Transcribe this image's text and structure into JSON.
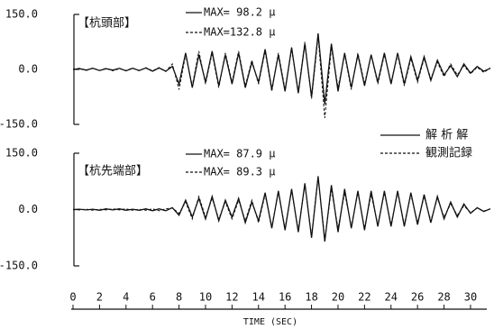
{
  "chart_data": [
    {
      "type": "line",
      "label": "【杭頭部】",
      "annotations": [
        "MAX= 98.2 μ",
        "MAX=132.8 μ"
      ],
      "xlim": [
        0,
        31.5
      ],
      "ylim": [
        -150,
        150
      ],
      "yticks": [
        {
          "value": 150,
          "label": "150.0"
        },
        {
          "value": 0,
          "label": "0.0"
        },
        {
          "value": -150,
          "label": "-150.0"
        }
      ],
      "x": [
        0,
        0.5,
        1,
        1.5,
        2,
        2.5,
        3,
        3.5,
        4,
        4.5,
        5,
        5.5,
        6,
        6.5,
        7,
        7.5,
        8,
        8.5,
        9,
        9.5,
        10,
        10.5,
        11,
        11.5,
        12,
        12.5,
        13,
        13.5,
        14,
        14.5,
        15,
        15.5,
        16,
        16.5,
        17,
        17.5,
        18,
        18.5,
        19,
        19.5,
        20,
        20.5,
        21,
        21.5,
        22,
        22.5,
        23,
        23.5,
        24,
        24.5,
        25,
        25.5,
        26,
        26.5,
        27,
        27.5,
        28,
        28.5,
        29,
        29.5,
        30,
        30.5,
        31,
        31.5
      ],
      "series": [
        {
          "name": "解 析 解",
          "color": "#111111",
          "dashed": false,
          "values": [
            0,
            2,
            -2,
            3,
            -3,
            2,
            -2,
            3,
            -4,
            3,
            -3,
            4,
            -5,
            4,
            -5,
            8,
            -40,
            45,
            -50,
            40,
            -35,
            50,
            -45,
            40,
            -40,
            45,
            -50,
            20,
            -35,
            55,
            -55,
            40,
            -60,
            60,
            -65,
            70,
            -75,
            98.2,
            -95,
            70,
            -60,
            45,
            -50,
            40,
            -45,
            40,
            -35,
            45,
            -40,
            45,
            -40,
            35,
            -30,
            35,
            -30,
            25,
            -15,
            10,
            -20,
            15,
            -10,
            8,
            -5,
            3
          ]
        },
        {
          "name": "観測記録",
          "color": "#111111",
          "dashed": true,
          "values": [
            0,
            3,
            -3,
            4,
            -3,
            3,
            -4,
            2,
            -3,
            4,
            -4,
            5,
            -4,
            5,
            -6,
            15,
            -55,
            40,
            -45,
            50,
            -40,
            45,
            -50,
            45,
            -35,
            50,
            -45,
            25,
            -40,
            50,
            -60,
            45,
            -55,
            55,
            -60,
            75,
            -80,
            90,
            -132.8,
            60,
            -50,
            40,
            -55,
            45,
            -40,
            40,
            -40,
            40,
            -35,
            40,
            -45,
            30,
            -35,
            30,
            -25,
            20,
            -20,
            15,
            -15,
            10,
            -12,
            6,
            -8,
            4
          ]
        }
      ]
    },
    {
      "type": "line",
      "label": "【杭先端部】",
      "annotations": [
        "MAX= 87.9 μ",
        "MAX= 89.3 μ"
      ],
      "xlabel": "TIME (SEC)",
      "xlim": [
        0,
        31.5
      ],
      "ylim": [
        -150,
        150
      ],
      "xticks": [
        0,
        2,
        4,
        6,
        8,
        10,
        12,
        14,
        16,
        18,
        20,
        22,
        24,
        26,
        28,
        30
      ],
      "yticks": [
        {
          "value": 150,
          "label": "150.0"
        },
        {
          "value": 0,
          "label": "0.0"
        },
        {
          "value": -150,
          "label": "-150.0"
        }
      ],
      "x": [
        0,
        0.5,
        1,
        1.5,
        2,
        2.5,
        3,
        3.5,
        4,
        4.5,
        5,
        5.5,
        6,
        6.5,
        7,
        7.5,
        8,
        8.5,
        9,
        9.5,
        10,
        10.5,
        11,
        11.5,
        12,
        12.5,
        13,
        13.5,
        14,
        14.5,
        15,
        15.5,
        16,
        16.5,
        17,
        17.5,
        18,
        18.5,
        19,
        19.5,
        20,
        20.5,
        21,
        21.5,
        22,
        22.5,
        23,
        23.5,
        24,
        24.5,
        25,
        25.5,
        26,
        26.5,
        27,
        27.5,
        28,
        28.5,
        29,
        29.5,
        30,
        30.5,
        31,
        31.5
      ],
      "series": [
        {
          "color": "#111111",
          "dashed": false,
          "values": [
            0,
            1,
            -1,
            1,
            -2,
            2,
            -1,
            2,
            -2,
            1,
            -2,
            2,
            -3,
            2,
            -3,
            5,
            -15,
            25,
            -20,
            30,
            -25,
            35,
            -30,
            25,
            -20,
            30,
            -35,
            20,
            -30,
            45,
            -50,
            50,
            -55,
            55,
            -60,
            70,
            -75,
            87.9,
            -85,
            65,
            -60,
            55,
            -50,
            50,
            -55,
            50,
            -45,
            50,
            -45,
            50,
            -45,
            45,
            -40,
            40,
            -35,
            35,
            -25,
            20,
            -20,
            15,
            -10,
            5,
            -5,
            2
          ]
        },
        {
          "color": "#111111",
          "dashed": true,
          "values": [
            0,
            -1,
            1,
            -2,
            1,
            -1,
            2,
            -1,
            2,
            -2,
            1,
            -2,
            2,
            -3,
            2,
            4,
            -10,
            20,
            -25,
            35,
            -20,
            30,
            -25,
            20,
            -25,
            25,
            -30,
            25,
            -35,
            40,
            -45,
            45,
            -50,
            50,
            -55,
            65,
            -70,
            89.3,
            -80,
            55,
            -50,
            45,
            -45,
            45,
            -50,
            40,
            -40,
            45,
            -40,
            45,
            -40,
            40,
            -35,
            35,
            -30,
            30,
            -20,
            15,
            -15,
            10,
            -8,
            4,
            -4,
            2
          ]
        }
      ]
    }
  ]
}
